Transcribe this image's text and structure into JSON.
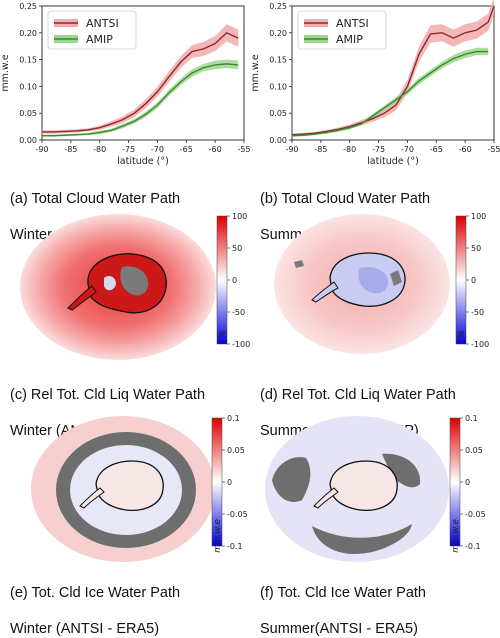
{
  "chart_data": [
    {
      "id": "a",
      "type": "line",
      "caption_line1": "(a) Total Cloud Water Path",
      "caption_line2": "Winter",
      "xlabel": "latitude (°)",
      "ylabel": "mm.w.e",
      "xlim": [
        -90,
        -55
      ],
      "ylim": [
        0,
        0.25
      ],
      "xticks": [
        "-90",
        "-85",
        "-80",
        "-75",
        "-70",
        "-65",
        "-60",
        "-55"
      ],
      "yticks": [
        "0.00",
        "0.05",
        "0.10",
        "0.15",
        "0.20",
        "0.25"
      ],
      "legend_position": "top-left",
      "series": [
        {
          "name": "ANTSI",
          "color": "#8b2a2a",
          "band": "#f2aaaa",
          "x": [
            -90,
            -88,
            -86,
            -84,
            -82,
            -80,
            -78,
            -76,
            -74,
            -72,
            -70,
            -68,
            -66,
            -64,
            -62,
            -60,
            -58,
            -56
          ],
          "y": [
            0.015,
            0.015,
            0.016,
            0.017,
            0.019,
            0.023,
            0.03,
            0.038,
            0.05,
            0.068,
            0.09,
            0.118,
            0.145,
            0.165,
            0.17,
            0.18,
            0.2,
            0.19
          ],
          "spread": [
            0.003,
            0.003,
            0.003,
            0.003,
            0.003,
            0.004,
            0.005,
            0.006,
            0.007,
            0.008,
            0.009,
            0.01,
            0.011,
            0.012,
            0.013,
            0.014,
            0.016,
            0.016
          ]
        },
        {
          "name": "AMIP",
          "color": "#3b8a2e",
          "band": "#9fd68f",
          "x": [
            -90,
            -88,
            -86,
            -84,
            -82,
            -80,
            -78,
            -76,
            -74,
            -72,
            -70,
            -68,
            -66,
            -64,
            -62,
            -60,
            -58,
            -56
          ],
          "y": [
            0.008,
            0.008,
            0.009,
            0.01,
            0.011,
            0.014,
            0.018,
            0.026,
            0.035,
            0.048,
            0.065,
            0.088,
            0.108,
            0.125,
            0.135,
            0.14,
            0.142,
            0.14
          ],
          "spread": [
            0.002,
            0.002,
            0.002,
            0.002,
            0.002,
            0.003,
            0.003,
            0.004,
            0.004,
            0.005,
            0.005,
            0.006,
            0.006,
            0.007,
            0.007,
            0.008,
            0.008,
            0.008
          ]
        }
      ]
    },
    {
      "id": "b",
      "type": "line",
      "caption_line1": "(b) Total Cloud Water Path",
      "caption_line2": "Summer",
      "xlabel": "latitude (°)",
      "ylabel": "mm.w.e",
      "xlim": [
        -90,
        -55
      ],
      "ylim": [
        0,
        0.25
      ],
      "xticks": [
        "-90",
        "-85",
        "-80",
        "-75",
        "-70",
        "-65",
        "-60",
        "-55"
      ],
      "yticks": [
        "0.00",
        "0.05",
        "0.10",
        "0.15",
        "0.20",
        "0.25"
      ],
      "legend_position": "top-left",
      "series": [
        {
          "name": "ANTSI",
          "color": "#8b2a2a",
          "band": "#f2aaaa",
          "x": [
            -90,
            -88,
            -86,
            -84,
            -82,
            -80,
            -78,
            -76,
            -74,
            -72,
            -70,
            -68,
            -66,
            -64,
            -62,
            -60,
            -58,
            -56,
            -55
          ],
          "y": [
            0.01,
            0.011,
            0.013,
            0.016,
            0.02,
            0.025,
            0.032,
            0.04,
            0.05,
            0.065,
            0.1,
            0.16,
            0.198,
            0.2,
            0.19,
            0.2,
            0.205,
            0.22,
            0.25
          ],
          "spread": [
            0.002,
            0.002,
            0.002,
            0.003,
            0.003,
            0.004,
            0.005,
            0.006,
            0.008,
            0.01,
            0.012,
            0.014,
            0.016,
            0.016,
            0.016,
            0.016,
            0.016,
            0.016,
            0.016
          ]
        },
        {
          "name": "AMIP",
          "color": "#3b8a2e",
          "band": "#9fd68f",
          "x": [
            -90,
            -88,
            -86,
            -84,
            -82,
            -80,
            -78,
            -76,
            -74,
            -72,
            -70,
            -68,
            -66,
            -64,
            -62,
            -60,
            -58,
            -56
          ],
          "y": [
            0.008,
            0.009,
            0.011,
            0.014,
            0.018,
            0.023,
            0.03,
            0.045,
            0.06,
            0.075,
            0.09,
            0.11,
            0.125,
            0.14,
            0.152,
            0.16,
            0.165,
            0.165
          ],
          "spread": [
            0.002,
            0.002,
            0.002,
            0.002,
            0.003,
            0.003,
            0.003,
            0.004,
            0.004,
            0.005,
            0.005,
            0.006,
            0.006,
            0.006,
            0.007,
            0.007,
            0.007,
            0.007
          ]
        }
      ]
    },
    {
      "id": "c",
      "type": "heatmap",
      "caption_line1": "(c) Rel Tot. Cld Liq Water Path",
      "caption_line2": "Winter (ANTSI - AMIP)",
      "colorbar": {
        "ticks": [
          "100",
          "50",
          "0",
          "-50",
          "-100"
        ],
        "unit": "%",
        "range": [
          -100,
          100
        ]
      }
    },
    {
      "id": "d",
      "type": "heatmap",
      "caption_line1": "(d) Rel Tot. Cld Liq Water Path",
      "caption_line2": "Summer (ANTSI - AMIP)",
      "colorbar": {
        "ticks": [
          "100",
          "50",
          "0",
          "-50",
          "-100"
        ],
        "unit": "%",
        "range": [
          -100,
          100
        ]
      }
    },
    {
      "id": "e",
      "type": "heatmap",
      "caption_line1": "(e) Tot. Cld Ice Water Path",
      "caption_line2": "Winter (ANTSI - ERA5)",
      "colorbar": {
        "ticks": [
          "0.1",
          "0.05",
          "0",
          "-0.05",
          "-0.1"
        ],
        "unit": "mm.w.e",
        "range": [
          -0.1,
          0.1
        ]
      }
    },
    {
      "id": "f",
      "type": "heatmap",
      "caption_line1": "(f)  Tot. Cld Ice Water Path",
      "caption_line2": "Summer(ANTSI - ERA5)",
      "colorbar": {
        "ticks": [
          "0.1",
          "0.05",
          "0",
          "-0.05",
          "-0.1"
        ],
        "unit": "mm.w.e",
        "range": [
          -0.1,
          0.1
        ]
      }
    }
  ]
}
